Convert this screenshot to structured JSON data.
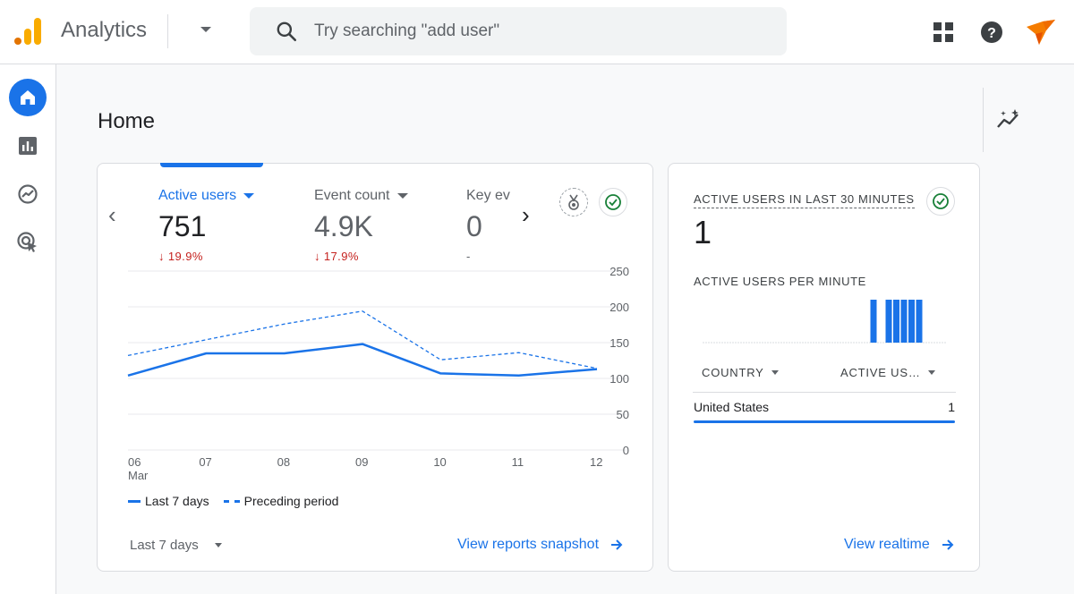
{
  "header": {
    "app_title": "Analytics",
    "search_placeholder": "Try searching \"add user\"",
    "icons": [
      "analytics-logo-icon",
      "search-icon",
      "apps-grid-icon",
      "help-icon",
      "account-avatar-icon"
    ]
  },
  "rail": {
    "items": [
      {
        "name": "home",
        "icon": "home-icon",
        "active": true
      },
      {
        "name": "reports",
        "icon": "bar-chart-icon",
        "active": false
      },
      {
        "name": "explore",
        "icon": "explore-icon",
        "active": false
      },
      {
        "name": "advertising",
        "icon": "advertising-icon",
        "active": false
      }
    ]
  },
  "page": {
    "title": "Home"
  },
  "overview": {
    "metrics": [
      {
        "label": "Active users",
        "value": "751",
        "delta": "19.9%",
        "delta_arrow": "↓"
      },
      {
        "label": "Event count",
        "value": "4.9K",
        "delta": "17.9%",
        "delta_arrow": "↓"
      },
      {
        "label": "Key ev",
        "value": "0",
        "delta": "-"
      }
    ],
    "date_range": "Last 7 days",
    "link": "View reports snapshot"
  },
  "chart_data": {
    "type": "line",
    "x": [
      "06",
      "07",
      "08",
      "09",
      "10",
      "11",
      "12"
    ],
    "x_sublabel": "Mar",
    "series": [
      {
        "name": "Last 7 days",
        "style": "solid",
        "values": [
          104,
          135,
          135,
          148,
          107,
          104,
          113
        ]
      },
      {
        "name": "Preceding period",
        "style": "dashed",
        "values": [
          132,
          154,
          176,
          194,
          126,
          136,
          114
        ]
      }
    ],
    "y_ticks": [
      "250",
      "200",
      "150",
      "100",
      "50",
      "0"
    ],
    "ylim": [
      0,
      250
    ],
    "legend_position": "bottom-left",
    "color": "#1a73e8"
  },
  "realtime": {
    "title": "ACTIVE USERS IN LAST 30 MINUTES",
    "value": "1",
    "per_minute_label": "ACTIVE USERS PER MINUTE",
    "per_minute_values": [
      0,
      0,
      0,
      0,
      0,
      0,
      0,
      0,
      0,
      0,
      0,
      0,
      0,
      0,
      0,
      0,
      0,
      0,
      0,
      0,
      0,
      0,
      1,
      0,
      1,
      1,
      1,
      1,
      1,
      0,
      0,
      0
    ],
    "table": {
      "headers": [
        "COUNTRY",
        "ACTIVE US…"
      ],
      "rows": [
        {
          "country": "United States",
          "users": "1"
        }
      ]
    },
    "link": "View realtime"
  },
  "colors": {
    "accent": "#1a73e8",
    "negative": "#c5221f",
    "success": "#188038",
    "logo_orange": "#f9ab00",
    "logo_dark_orange": "#e37400",
    "avatar_orange": "#f57c00"
  }
}
